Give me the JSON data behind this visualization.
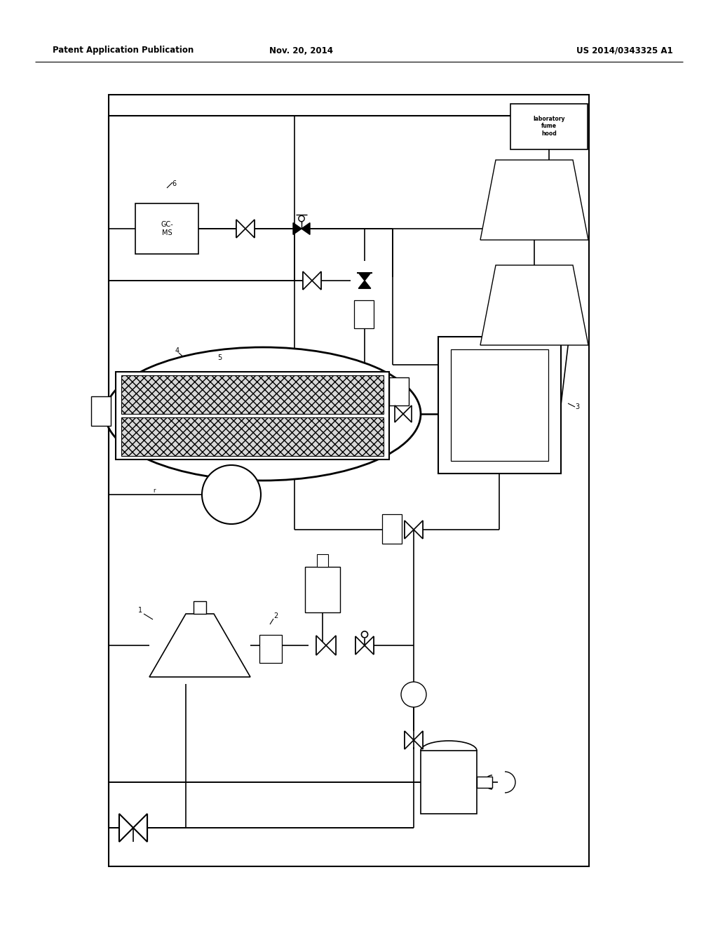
{
  "title_left": "Patent Application Publication",
  "title_mid": "Nov. 20, 2014",
  "title_right": "US 2014/0343325 A1",
  "bg_color": "#ffffff",
  "fig_width": 10.24,
  "fig_height": 13.2,
  "dpi": 100
}
